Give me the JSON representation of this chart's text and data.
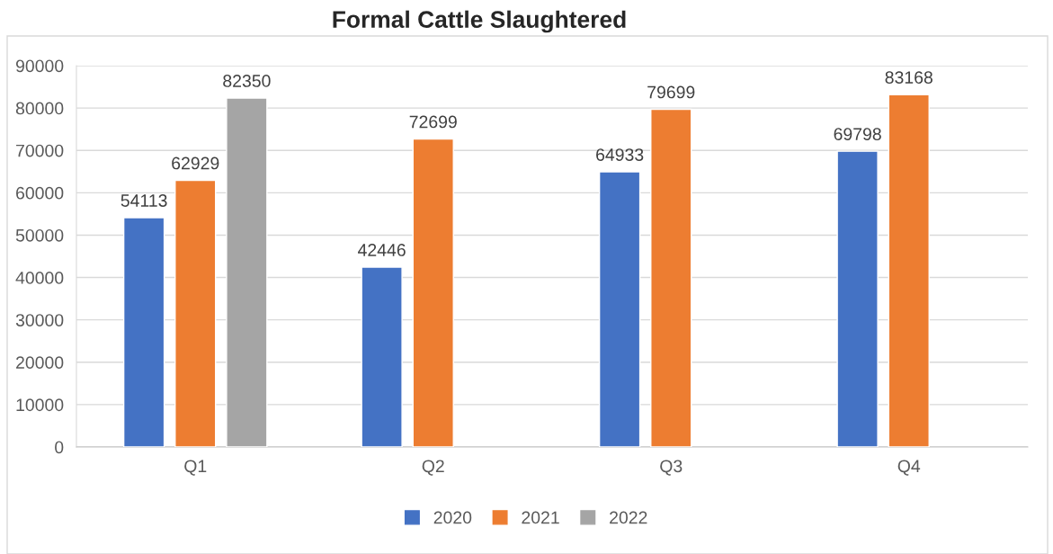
{
  "chart_data": {
    "type": "bar",
    "title": "Formal Cattle Slaughtered",
    "categories": [
      "Q1",
      "Q2",
      "Q3",
      "Q4"
    ],
    "series": [
      {
        "name": "2020",
        "color": "#4472c4",
        "values": [
          54113,
          42446,
          64933,
          69798
        ]
      },
      {
        "name": "2021",
        "color": "#ed7d31",
        "values": [
          62929,
          72699,
          79699,
          83168
        ]
      },
      {
        "name": "2022",
        "color": "#a5a5a5",
        "values": [
          82350,
          null,
          null,
          null
        ]
      }
    ],
    "ylim": [
      0,
      90000
    ],
    "yticks": [
      0,
      10000,
      20000,
      30000,
      40000,
      50000,
      60000,
      70000,
      80000,
      90000
    ],
    "grid": "y",
    "legend": "bottom",
    "data_labels": true
  }
}
